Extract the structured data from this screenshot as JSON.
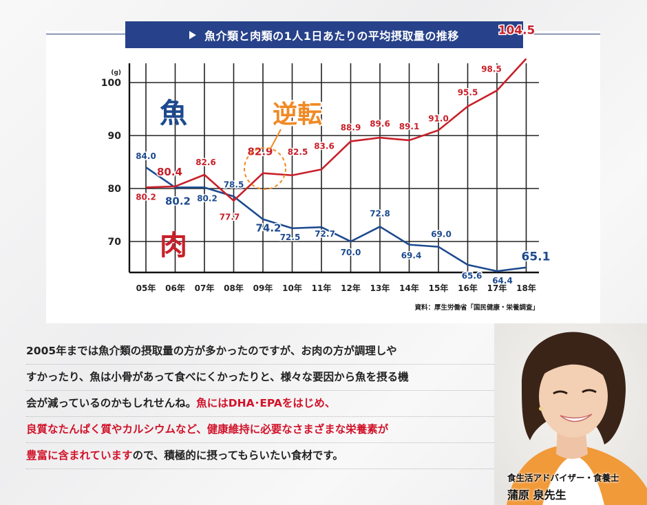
{
  "chart_data": {
    "type": "line",
    "title": "魚介類と肉類の1人1日あたりの平均摂取量の推移",
    "ylabel": "(g)",
    "ylim": [
      64,
      104.5
    ],
    "yticks": [
      70,
      80,
      90,
      100
    ],
    "grid": true,
    "categories": [
      "05年",
      "06年",
      "07年",
      "08年",
      "09年",
      "10年",
      "11年",
      "12年",
      "13年",
      "14年",
      "15年",
      "16年",
      "17年",
      "18年"
    ],
    "series": [
      {
        "name": "魚",
        "color": "#1d4a8e",
        "values": [
          84.0,
          80.2,
          80.2,
          78.5,
          74.2,
          72.5,
          72.7,
          70.0,
          72.8,
          69.4,
          69.0,
          65.6,
          64.4,
          65.1
        ]
      },
      {
        "name": "肉",
        "color": "#c8202a",
        "values": [
          80.2,
          80.4,
          82.6,
          77.7,
          82.9,
          82.5,
          83.6,
          88.9,
          89.6,
          89.1,
          91.0,
          95.5,
          98.5,
          104.5
        ]
      }
    ],
    "annotation": "逆転",
    "source": "資料：厚生労働省「国民健康・栄養調査」"
  },
  "body_text": {
    "line1": "2005年までは魚介類の摂取量の方が多かったのですが、お肉の方が調理しや",
    "line2": "すかったり、魚は小骨があって食べにくかったりと、様々な要因から魚を摂る機",
    "line3_a": "会が減っているのかもしれせんね。",
    "line3_b": "魚にはDHA･EPAをはじめ、",
    "line4": "良質なたんぱく質やカルシウムなど、健康維持に必要なさまざまな栄養素が",
    "line5_a": "豊富に含まれています",
    "line5_b": "ので、積極的に摂ってもらいたい食材です。"
  },
  "profile": {
    "role": "食生活アドバイザー・食養士",
    "name": "蒲原 泉先生"
  },
  "colors": {
    "fish": "#1d4a8e",
    "meat": "#c8202a",
    "accent": "#f08a24",
    "title_bg": "#27428a"
  }
}
